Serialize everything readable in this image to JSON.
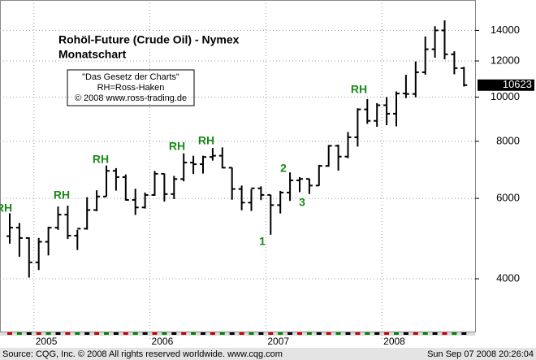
{
  "chart_data": {
    "type": "ohlc",
    "title": "Rohöl-Future (Crude Oil) - Nymex",
    "subtitle": "Monatschart",
    "info_box": [
      "\"Das Gesetz der Charts\"",
      "RH=Ross-Haken",
      "© 2008 www.ross-trading.de"
    ],
    "categories": [
      null,
      null,
      null,
      "2005",
      null,
      null,
      null,
      null,
      null,
      null,
      null,
      null,
      null,
      null,
      null,
      "2006",
      null,
      null,
      null,
      null,
      null,
      null,
      null,
      null,
      null,
      null,
      null,
      "2007",
      null,
      null,
      null,
      null,
      null,
      null,
      null,
      null,
      null,
      null,
      null,
      "2008",
      null,
      null,
      null,
      null,
      null,
      null,
      null,
      null
    ],
    "open": [
      4960,
      5176,
      4913,
      4345,
      4820,
      5175,
      5527,
      4972,
      5150,
      5658,
      6057,
      6894,
      6679,
      5953,
      5732,
      6104,
      6792,
      6131,
      6615,
      7188,
      7129,
      7394,
      7440,
      7004,
      6291,
      5873,
      6313,
      6105,
      5801,
      6179,
      6572,
      6618,
      6401,
      7068,
      7821,
      7408,
      8166,
      9400,
      8871,
      9598,
      9198,
      10184,
      10158,
      11336,
      12731,
      14000,
      12410,
      11571
    ],
    "high": [
      5567,
      5300,
      4930,
      4915,
      5200,
      5760,
      5785,
      5120,
      6035,
      6250,
      7080,
      6990,
      6770,
      6300,
      6180,
      6890,
      6800,
      6720,
      7530,
      7440,
      7440,
      7735,
      7760,
      7010,
      6400,
      6290,
      6375,
      6105,
      6230,
      6840,
      6680,
      6630,
      7105,
      7850,
      7870,
      8385,
      9450,
      9900,
      9700,
      10000,
      10290,
      11190,
      11970,
      13580,
      14300,
      14727,
      12600,
      11650
    ],
    "low": [
      4775,
      4470,
      4025,
      4180,
      4500,
      5120,
      4890,
      4625,
      5125,
      5625,
      6050,
      6240,
      5935,
      5520,
      5700,
      6080,
      5905,
      5980,
      6540,
      6790,
      6800,
      7260,
      6980,
      5960,
      5650,
      5630,
      5950,
      4995,
      5560,
      5925,
      6190,
      6135,
      6390,
      7040,
      6900,
      7350,
      7790,
      8740,
      8610,
      8680,
      8630,
      9950,
      9990,
      11200,
      12200,
      12100,
      11220,
      10550
    ],
    "close": [
      5176,
      4913,
      4345,
      4820,
      5175,
      5527,
      4972,
      5150,
      5658,
      6057,
      6894,
      6679,
      5953,
      5732,
      6104,
      6792,
      6131,
      6615,
      7188,
      7129,
      7394,
      7440,
      7004,
      6291,
      5873,
      6313,
      6105,
      5801,
      6179,
      6572,
      6618,
      6401,
      7068,
      7821,
      7408,
      8166,
      9400,
      8871,
      9598,
      9198,
      10184,
      10158,
      11336,
      12731,
      14000,
      12410,
      11571,
      10623
    ],
    "color": "#000000",
    "ylim": [
      3065,
      16320
    ],
    "yticks": [
      4000,
      6000,
      8000,
      10000,
      12000,
      14000
    ],
    "log_scale": true,
    "grid": true,
    "last_price": 10623,
    "annotations": [
      "RH",
      "RH",
      "RH",
      "RH",
      "RH",
      "RH",
      "1",
      "2",
      "3"
    ],
    "annotation_color": "#1a8a1a",
    "footer_left": "Source: CQG, Inc. © 2008 All rights reserved worldwide. www.cqg.com",
    "footer_right": "Sun Sep 07 2008 20:26:04"
  }
}
